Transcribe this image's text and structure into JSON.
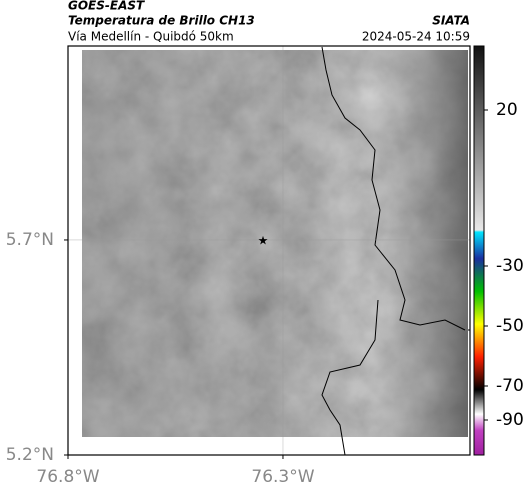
{
  "header": {
    "satellite": "GOES-EAST",
    "product": "Temperatura de Brillo CH13",
    "region": "Vía Medellín - Quibdó 50km",
    "source": "SIATA",
    "datetime": "2024-05-24 10:59"
  },
  "map": {
    "xlim": [
      -76.8,
      -75.865
    ],
    "ylim": [
      5.2,
      6.151
    ],
    "xticks": [
      {
        "value": -76.8,
        "label": "76.8°W"
      },
      {
        "value": -76.3,
        "label": "76.3°W"
      }
    ],
    "yticks": [
      {
        "value": 5.2,
        "label": "5.2°N"
      },
      {
        "value": 5.7,
        "label": "5.7°N"
      }
    ]
  },
  "colorbar": {
    "ticks": [
      20,
      -30,
      -50,
      -70,
      -90
    ]
  }
}
